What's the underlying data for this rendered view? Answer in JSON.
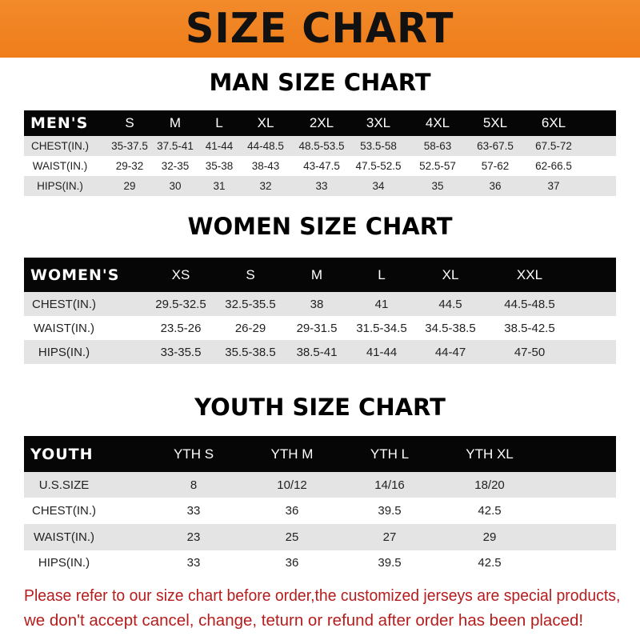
{
  "banner_title": "SIZE CHART",
  "men": {
    "title": "MAN SIZE CHART",
    "header": [
      "MEN'S",
      "S",
      "M",
      "L",
      "XL",
      "2XL",
      "3XL",
      "4XL",
      "5XL",
      "6XL"
    ],
    "rows": [
      [
        "CHEST(IN.)",
        "35-37.5",
        "37.5-41",
        "41-44",
        "44-48.5",
        "48.5-53.5",
        "53.5-58",
        "58-63",
        "63-67.5",
        "67.5-72"
      ],
      [
        "WAIST(IN.)",
        "29-32",
        "32-35",
        "35-38",
        "38-43",
        "43-47.5",
        "47.5-52.5",
        "52.5-57",
        "57-62",
        "62-66.5"
      ],
      [
        "HIPS(IN.)",
        "29",
        "30",
        "31",
        "32",
        "33",
        "34",
        "35",
        "36",
        "37"
      ]
    ]
  },
  "women": {
    "title": "WOMEN SIZE CHART",
    "header": [
      "WOMEN'S",
      "XS",
      "S",
      "M",
      "L",
      "XL",
      "XXL"
    ],
    "rows": [
      [
        "CHEST(IN.)",
        "29.5-32.5",
        "32.5-35.5",
        "38",
        "41",
        "44.5",
        "44.5-48.5"
      ],
      [
        "WAIST(IN.)",
        "23.5-26",
        "26-29",
        "29-31.5",
        "31.5-34.5",
        "34.5-38.5",
        "38.5-42.5"
      ],
      [
        "HIPS(IN.)",
        "33-35.5",
        "35.5-38.5",
        "38.5-41",
        "41-44",
        "44-47",
        "47-50"
      ]
    ]
  },
  "youth": {
    "title": "YOUTH SIZE CHART",
    "header": [
      "YOUTH",
      "YTH S",
      "YTH M",
      "YTH L",
      "YTH XL"
    ],
    "rows": [
      [
        "U.S.SIZE",
        "8",
        "10/12",
        "14/16",
        "18/20"
      ],
      [
        "CHEST(IN.)",
        "33",
        "36",
        "39.5",
        "42.5"
      ],
      [
        "WAIST(IN.)",
        "23",
        "25",
        "27",
        "29"
      ],
      [
        "HIPS(IN.)",
        "33",
        "36",
        "39.5",
        "42.5"
      ]
    ]
  },
  "notice": [
    "Please refer to our size chart before order,the customized jerseys are special products,",
    "we don't accept cancel, change, teturn or refund after order has been placed!"
  ],
  "colors": {
    "banner": "#ef7d1a",
    "header_row": "#060606",
    "stripe": "#e4e4e4",
    "notice": "#b51d1d"
  }
}
